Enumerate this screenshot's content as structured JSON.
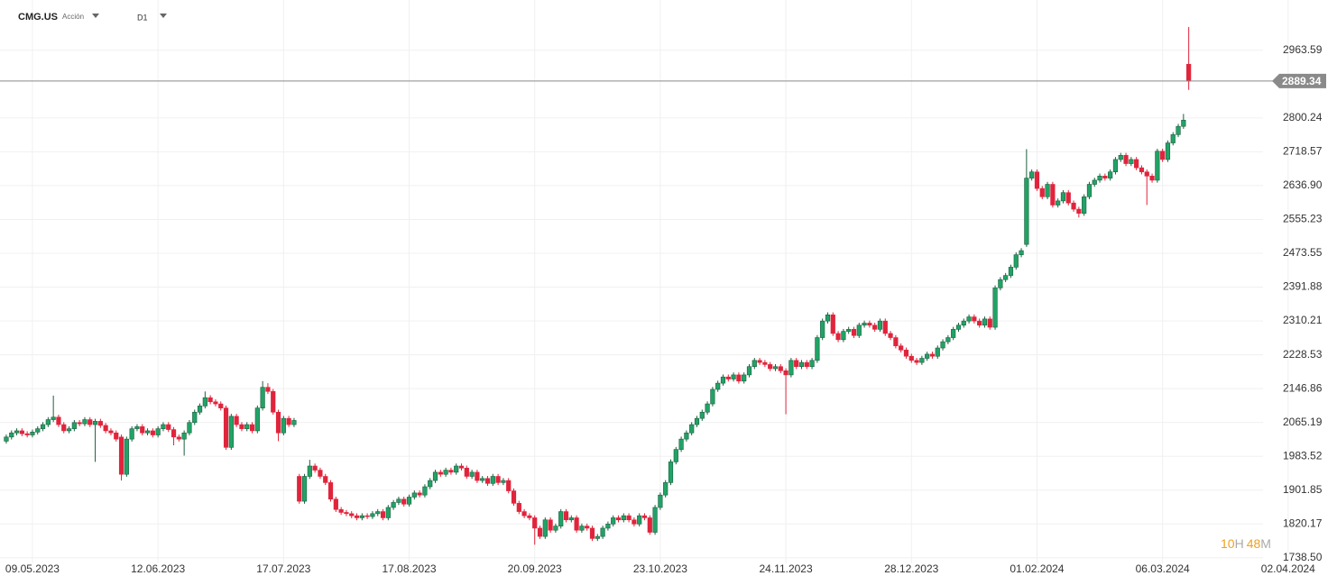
{
  "chart_data": {
    "type": "candlestick",
    "title": "CMG.US",
    "subtitle": "Acción",
    "timeframe": "D1",
    "countdown": [
      "10",
      "H",
      "48",
      "M"
    ],
    "up_color": "#21a366",
    "down_color": "#e0243c",
    "grid": true,
    "last_price": 2889.34,
    "ylim": [
      1725,
      3085
    ],
    "yticks": [
      2963.59,
      2800.24,
      2718.57,
      {
        "value": 2636.9,
        "label": "2636.90"
      },
      2555.23,
      2473.55,
      2391.88,
      2310.21,
      2228.53,
      2146.86,
      2065.19,
      1983.52,
      1901.85,
      1820.17,
      {
        "value": 1738.5,
        "label": "1738.50"
      }
    ],
    "xlim": [
      -1.2,
      240.2
    ],
    "xticks": [
      {
        "value": 5,
        "label": "09.05.2023"
      },
      {
        "value": 29,
        "label": "12.06.2023"
      },
      {
        "value": 53,
        "label": "17.07.2023"
      },
      {
        "value": 77,
        "label": "17.08.2023"
      },
      {
        "value": 101,
        "label": "20.09.2023"
      },
      {
        "value": 125,
        "label": "23.10.2023"
      },
      {
        "value": 149,
        "label": "24.11.2023"
      },
      {
        "value": 173,
        "label": "28.12.2023"
      },
      {
        "value": 197,
        "label": "01.02.2024"
      },
      {
        "value": 221,
        "label": "06.03.2024"
      },
      {
        "value": 245,
        "label": "02.04.2024"
      }
    ],
    "candles": [
      [
        2020,
        2036,
        2014,
        2030
      ],
      [
        2030,
        2046,
        2024,
        2040
      ],
      [
        2040,
        2051,
        2034,
        2045
      ],
      [
        2045,
        2051,
        2032,
        2038
      ],
      [
        2038,
        2044,
        2029,
        2035
      ],
      [
        2035,
        2048,
        2029,
        2042
      ],
      [
        2042,
        2056,
        2036,
        2050
      ],
      [
        2050,
        2066,
        2044,
        2060
      ],
      [
        2060,
        2078,
        2054,
        2072
      ],
      [
        2072,
        2130,
        2066,
        2078
      ],
      [
        2078,
        2084,
        2054,
        2060
      ],
      [
        2060,
        2066,
        2039,
        2045
      ],
      [
        2045,
        2056,
        2039,
        2050
      ],
      [
        2050,
        2071,
        2044,
        2065
      ],
      [
        2065,
        2071,
        2056,
        2062
      ],
      [
        2062,
        2078,
        2056,
        2072
      ],
      [
        2072,
        2078,
        2054,
        2060
      ],
      [
        2060,
        2074,
        1970,
        2068
      ],
      [
        2068,
        2074,
        2052,
        2058
      ],
      [
        2058,
        2064,
        2039,
        2045
      ],
      [
        2045,
        2051,
        2034,
        2040
      ],
      [
        2040,
        2046,
        2019,
        2025
      ],
      [
        2030,
        2036,
        1925,
        1940
      ],
      [
        1940,
        2031,
        1934,
        2025
      ],
      [
        2025,
        2056,
        2019,
        2050
      ],
      [
        2050,
        2061,
        2044,
        2055
      ],
      [
        2055,
        2061,
        2034,
        2040
      ],
      [
        2040,
        2051,
        2034,
        2045
      ],
      [
        2045,
        2051,
        2029,
        2035
      ],
      [
        2035,
        2056,
        2029,
        2050
      ],
      [
        2050,
        2066,
        2044,
        2060
      ],
      [
        2060,
        2066,
        2042,
        2048
      ],
      [
        2048,
        2054,
        2010,
        2030
      ],
      [
        2030,
        2036,
        2019,
        2025
      ],
      [
        2025,
        2046,
        1985,
        2040
      ],
      [
        2040,
        2071,
        2034,
        2065
      ],
      [
        2065,
        2096,
        2059,
        2090
      ],
      [
        2090,
        2111,
        2084,
        2105
      ],
      [
        2105,
        2140,
        2099,
        2125
      ],
      [
        2125,
        2131,
        2109,
        2115
      ],
      [
        2115,
        2121,
        2104,
        2110
      ],
      [
        2110,
        2116,
        2094,
        2100
      ],
      [
        2100,
        2106,
        1999,
        2005
      ],
      [
        2005,
        2086,
        1999,
        2080
      ],
      [
        2080,
        2086,
        2054,
        2060
      ],
      [
        2060,
        2066,
        2044,
        2050
      ],
      [
        2050,
        2066,
        2044,
        2060
      ],
      [
        2060,
        2066,
        2039,
        2045
      ],
      [
        2045,
        2106,
        2039,
        2100
      ],
      [
        2100,
        2165,
        2094,
        2150
      ],
      [
        2150,
        2160,
        2134,
        2140
      ],
      [
        2140,
        2146,
        2084,
        2090
      ],
      [
        2090,
        2096,
        2020,
        2040
      ],
      [
        2040,
        2081,
        2034,
        2075
      ],
      [
        2075,
        2081,
        2054,
        2060
      ],
      [
        2060,
        2076,
        2054,
        2070
      ],
      [
        1935,
        1941,
        1869,
        1875
      ],
      [
        1875,
        1941,
        1869,
        1935
      ],
      [
        1935,
        1975,
        1929,
        1960
      ],
      [
        1960,
        1966,
        1944,
        1950
      ],
      [
        1950,
        1956,
        1929,
        1935
      ],
      [
        1935,
        1941,
        1914,
        1920
      ],
      [
        1920,
        1926,
        1874,
        1880
      ],
      [
        1880,
        1886,
        1849,
        1855
      ],
      [
        1855,
        1861,
        1842,
        1848
      ],
      [
        1848,
        1854,
        1839,
        1845
      ],
      [
        1845,
        1851,
        1834,
        1840
      ],
      [
        1840,
        1846,
        1829,
        1835
      ],
      [
        1835,
        1846,
        1829,
        1840
      ],
      [
        1840,
        1846,
        1832,
        1838
      ],
      [
        1838,
        1851,
        1832,
        1845
      ],
      [
        1845,
        1856,
        1839,
        1850
      ],
      [
        1850,
        1856,
        1829,
        1835
      ],
      [
        1835,
        1866,
        1829,
        1860
      ],
      [
        1860,
        1878,
        1854,
        1872
      ],
      [
        1872,
        1886,
        1866,
        1880
      ],
      [
        1880,
        1886,
        1862,
        1868
      ],
      [
        1868,
        1891,
        1862,
        1885
      ],
      [
        1885,
        1901,
        1879,
        1895
      ],
      [
        1895,
        1901,
        1884,
        1890
      ],
      [
        1890,
        1916,
        1884,
        1910
      ],
      [
        1910,
        1931,
        1904,
        1925
      ],
      [
        1925,
        1951,
        1919,
        1945
      ],
      [
        1945,
        1951,
        1934,
        1940
      ],
      [
        1940,
        1956,
        1934,
        1950
      ],
      [
        1950,
        1956,
        1939,
        1945
      ],
      [
        1945,
        1966,
        1939,
        1960
      ],
      [
        1960,
        1966,
        1949,
        1955
      ],
      [
        1955,
        1961,
        1929,
        1935
      ],
      [
        1935,
        1951,
        1929,
        1945
      ],
      [
        1945,
        1951,
        1919,
        1925
      ],
      [
        1925,
        1936,
        1919,
        1930
      ],
      [
        1930,
        1936,
        1912,
        1918
      ],
      [
        1918,
        1941,
        1912,
        1935
      ],
      [
        1935,
        1941,
        1914,
        1920
      ],
      [
        1920,
        1931,
        1914,
        1925
      ],
      [
        1925,
        1931,
        1894,
        1900
      ],
      [
        1900,
        1906,
        1864,
        1870
      ],
      [
        1870,
        1876,
        1844,
        1850
      ],
      [
        1850,
        1856,
        1834,
        1840
      ],
      [
        1840,
        1846,
        1829,
        1835
      ],
      [
        1835,
        1841,
        1770,
        1810
      ],
      [
        1810,
        1816,
        1784,
        1790
      ],
      [
        1790,
        1836,
        1784,
        1830
      ],
      [
        1830,
        1836,
        1799,
        1805
      ],
      [
        1805,
        1821,
        1799,
        1815
      ],
      [
        1815,
        1856,
        1809,
        1850
      ],
      [
        1850,
        1856,
        1824,
        1830
      ],
      [
        1830,
        1841,
        1824,
        1835
      ],
      [
        1835,
        1841,
        1799,
        1805
      ],
      [
        1805,
        1821,
        1799,
        1815
      ],
      [
        1815,
        1821,
        1804,
        1810
      ],
      [
        1810,
        1816,
        1779,
        1785
      ],
      [
        1785,
        1796,
        1779,
        1790
      ],
      [
        1790,
        1816,
        1784,
        1810
      ],
      [
        1810,
        1826,
        1804,
        1820
      ],
      [
        1820,
        1841,
        1814,
        1835
      ],
      [
        1835,
        1841,
        1824,
        1830
      ],
      [
        1830,
        1846,
        1824,
        1840
      ],
      [
        1840,
        1846,
        1824,
        1830
      ],
      [
        1830,
        1836,
        1814,
        1820
      ],
      [
        1820,
        1846,
        1814,
        1840
      ],
      [
        1840,
        1846,
        1829,
        1835
      ],
      [
        1835,
        1841,
        1794,
        1800
      ],
      [
        1800,
        1866,
        1794,
        1860
      ],
      [
        1860,
        1896,
        1854,
        1890
      ],
      [
        1890,
        1926,
        1884,
        1920
      ],
      [
        1920,
        1976,
        1914,
        1970
      ],
      [
        1970,
        2006,
        1964,
        2000
      ],
      [
        2000,
        2031,
        1994,
        2025
      ],
      [
        2025,
        2046,
        2019,
        2040
      ],
      [
        2040,
        2066,
        2034,
        2060
      ],
      [
        2060,
        2081,
        2054,
        2075
      ],
      [
        2075,
        2096,
        2069,
        2090
      ],
      [
        2090,
        2116,
        2084,
        2110
      ],
      [
        2110,
        2151,
        2104,
        2145
      ],
      [
        2145,
        2166,
        2139,
        2160
      ],
      [
        2160,
        2181,
        2154,
        2175
      ],
      [
        2175,
        2181,
        2164,
        2170
      ],
      [
        2170,
        2186,
        2164,
        2180
      ],
      [
        2180,
        2186,
        2159,
        2165
      ],
      [
        2165,
        2186,
        2159,
        2180
      ],
      [
        2180,
        2206,
        2174,
        2200
      ],
      [
        2200,
        2221,
        2194,
        2215
      ],
      [
        2215,
        2221,
        2204,
        2210
      ],
      [
        2210,
        2216,
        2199,
        2205
      ],
      [
        2205,
        2211,
        2189,
        2195
      ],
      [
        2195,
        2206,
        2189,
        2200
      ],
      [
        2200,
        2206,
        2184,
        2190
      ],
      [
        2190,
        2196,
        2085,
        2180
      ],
      [
        2180,
        2221,
        2174,
        2215
      ],
      [
        2215,
        2221,
        2194,
        2200
      ],
      [
        2200,
        2216,
        2194,
        2210
      ],
      [
        2210,
        2216,
        2194,
        2200
      ],
      [
        2200,
        2221,
        2194,
        2215
      ],
      [
        2215,
        2276,
        2209,
        2270
      ],
      [
        2270,
        2316,
        2264,
        2310
      ],
      [
        2310,
        2331,
        2304,
        2325
      ],
      [
        2325,
        2331,
        2274,
        2280
      ],
      [
        2280,
        2286,
        2259,
        2265
      ],
      [
        2265,
        2291,
        2259,
        2285
      ],
      [
        2285,
        2296,
        2279,
        2290
      ],
      [
        2290,
        2296,
        2269,
        2275
      ],
      [
        2275,
        2306,
        2269,
        2300
      ],
      [
        2300,
        2311,
        2294,
        2305
      ],
      [
        2305,
        2311,
        2294,
        2300
      ],
      [
        2300,
        2306,
        2284,
        2290
      ],
      [
        2290,
        2316,
        2284,
        2310
      ],
      [
        2310,
        2316,
        2274,
        2280
      ],
      [
        2280,
        2286,
        2264,
        2270
      ],
      [
        2270,
        2276,
        2244,
        2250
      ],
      [
        2250,
        2256,
        2234,
        2240
      ],
      [
        2240,
        2246,
        2219,
        2225
      ],
      [
        2225,
        2231,
        2209,
        2215
      ],
      [
        2215,
        2221,
        2204,
        2210
      ],
      [
        2210,
        2226,
        2204,
        2220
      ],
      [
        2220,
        2236,
        2214,
        2230
      ],
      [
        2230,
        2236,
        2219,
        2225
      ],
      [
        2225,
        2251,
        2219,
        2245
      ],
      [
        2245,
        2266,
        2239,
        2260
      ],
      [
        2260,
        2276,
        2254,
        2270
      ],
      [
        2270,
        2296,
        2264,
        2290
      ],
      [
        2290,
        2306,
        2284,
        2300
      ],
      [
        2300,
        2316,
        2294,
        2310
      ],
      [
        2310,
        2326,
        2304,
        2320
      ],
      [
        2320,
        2326,
        2304,
        2310
      ],
      [
        2310,
        2316,
        2294,
        2300
      ],
      [
        2300,
        2321,
        2294,
        2315
      ],
      [
        2315,
        2321,
        2289,
        2295
      ],
      [
        2295,
        2396,
        2289,
        2390
      ],
      [
        2390,
        2416,
        2384,
        2410
      ],
      [
        2410,
        2426,
        2404,
        2420
      ],
      [
        2420,
        2446,
        2414,
        2440
      ],
      [
        2440,
        2476,
        2434,
        2470
      ],
      [
        2470,
        2486,
        2464,
        2480
      ],
      [
        2495,
        2725,
        2489,
        2655
      ],
      [
        2655,
        2676,
        2649,
        2670
      ],
      [
        2670,
        2676,
        2624,
        2630
      ],
      [
        2630,
        2636,
        2604,
        2610
      ],
      [
        2610,
        2646,
        2604,
        2640
      ],
      [
        2640,
        2646,
        2584,
        2590
      ],
      [
        2590,
        2606,
        2584,
        2600
      ],
      [
        2600,
        2626,
        2594,
        2620
      ],
      [
        2620,
        2626,
        2589,
        2595
      ],
      [
        2595,
        2601,
        2574,
        2580
      ],
      [
        2580,
        2586,
        2560,
        2570
      ],
      [
        2570,
        2616,
        2564,
        2610
      ],
      [
        2610,
        2646,
        2604,
        2640
      ],
      [
        2640,
        2656,
        2634,
        2650
      ],
      [
        2650,
        2666,
        2644,
        2660
      ],
      [
        2660,
        2666,
        2649,
        2655
      ],
      [
        2655,
        2676,
        2649,
        2670
      ],
      [
        2670,
        2706,
        2664,
        2700
      ],
      [
        2700,
        2716,
        2694,
        2710
      ],
      [
        2710,
        2716,
        2684,
        2690
      ],
      [
        2690,
        2706,
        2684,
        2700
      ],
      [
        2700,
        2706,
        2674,
        2680
      ],
      [
        2680,
        2686,
        2664,
        2670
      ],
      [
        2670,
        2676,
        2590,
        2660
      ],
      [
        2660,
        2666,
        2644,
        2650
      ],
      [
        2650,
        2726,
        2644,
        2720
      ],
      [
        2720,
        2726,
        2694,
        2700
      ],
      [
        2700,
        2746,
        2694,
        2740
      ],
      [
        2740,
        2766,
        2734,
        2760
      ],
      [
        2760,
        2786,
        2754,
        2780
      ],
      [
        2780,
        2810,
        2774,
        2795
      ],
      [
        2930,
        3020,
        2868,
        2889
      ]
    ]
  }
}
